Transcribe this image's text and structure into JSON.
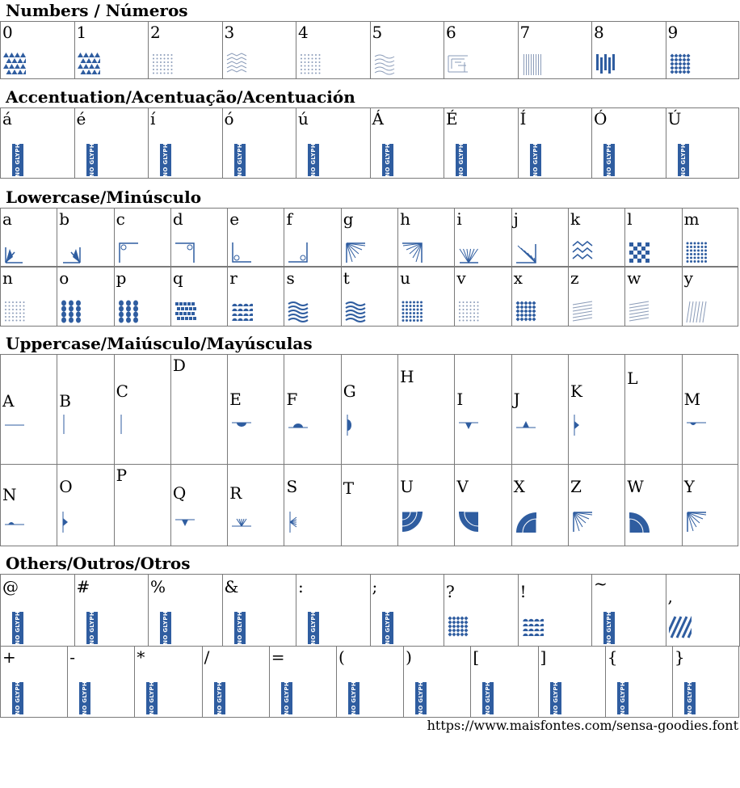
{
  "sections": {
    "numbers": "Numbers / Números",
    "accentuation": "Accentuation/Acentuação/Acentuación",
    "lowercase": "Lowercase/Minúsculo",
    "uppercase": "Uppercase/Maiúsculo/Mayúsculas",
    "others": "Others/Outros/Otros"
  },
  "no_glyph_label": "NO GLYPH",
  "numbers": [
    "0",
    "1",
    "2",
    "3",
    "4",
    "5",
    "6",
    "7",
    "8",
    "9"
  ],
  "accents": [
    "á",
    "é",
    "í",
    "ó",
    "ú",
    "Á",
    "É",
    "Í",
    "Ó",
    "Ú"
  ],
  "lower_row1": [
    "a",
    "b",
    "c",
    "d",
    "e",
    "f",
    "g",
    "h",
    "i",
    "j",
    "k",
    "l",
    "m"
  ],
  "lower_row2": [
    "n",
    "o",
    "p",
    "q",
    "r",
    "s",
    "t",
    "u",
    "v",
    "x",
    "z",
    "w",
    "y"
  ],
  "upper_row1": [
    "A",
    "B",
    "C",
    "D",
    "E",
    "F",
    "G",
    "H",
    "I",
    "J",
    "K",
    "L",
    "M"
  ],
  "upper_row2": [
    "N",
    "O",
    "P",
    "Q",
    "R",
    "S",
    "T",
    "U",
    "V",
    "X",
    "Z",
    "W",
    "Y"
  ],
  "others_row1": [
    "@",
    "#",
    "%",
    "&",
    ":",
    ";",
    "?",
    "!",
    "~",
    ","
  ],
  "others_row2": [
    "+",
    "-",
    "*",
    "/",
    "=",
    "(",
    ")",
    "[",
    "]",
    "{",
    "}"
  ],
  "footer_url": "https://www.maisfontes.com/sensa-goodies.font",
  "colors": {
    "glyph": "#2f5da0",
    "glyph_light": "#8a9bb8",
    "border": "#7a7a7a"
  }
}
